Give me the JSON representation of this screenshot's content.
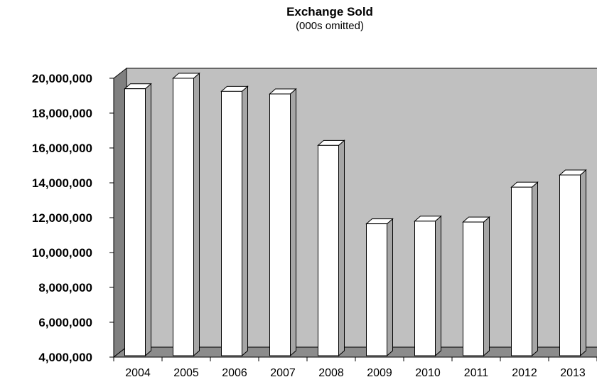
{
  "chart_data": {
    "type": "bar",
    "title": "Exchange Sold",
    "subtitle": "(000s omitted)",
    "xlabel": "",
    "ylabel": "",
    "categories": [
      "2004",
      "2005",
      "2006",
      "2007",
      "2008",
      "2009",
      "2010",
      "2011",
      "2012",
      "2013"
    ],
    "values": [
      19400000,
      20000000,
      19250000,
      19100000,
      16150000,
      11650000,
      11800000,
      11750000,
      13750000,
      14450000
    ],
    "ylim": [
      4000000,
      20000000
    ],
    "yticks": [
      "4,000,000",
      "6,000,000",
      "8,000,000",
      "10,000,000",
      "12,000,000",
      "14,000,000",
      "16,000,000",
      "18,000,000",
      "20,000,000"
    ],
    "ytick_values": [
      4000000,
      6000000,
      8000000,
      10000000,
      12000000,
      14000000,
      16000000,
      18000000,
      20000000
    ],
    "grid": false,
    "legend": "none",
    "style": "3d",
    "colors": {
      "bar_face": "#ffffff",
      "bar_side": "#a6a6a6",
      "bar_top": "#ffffff",
      "wall": "#c0c0c0",
      "side_wall": "#808080",
      "floor": "#8c8c8c",
      "outline": "#000000"
    }
  }
}
